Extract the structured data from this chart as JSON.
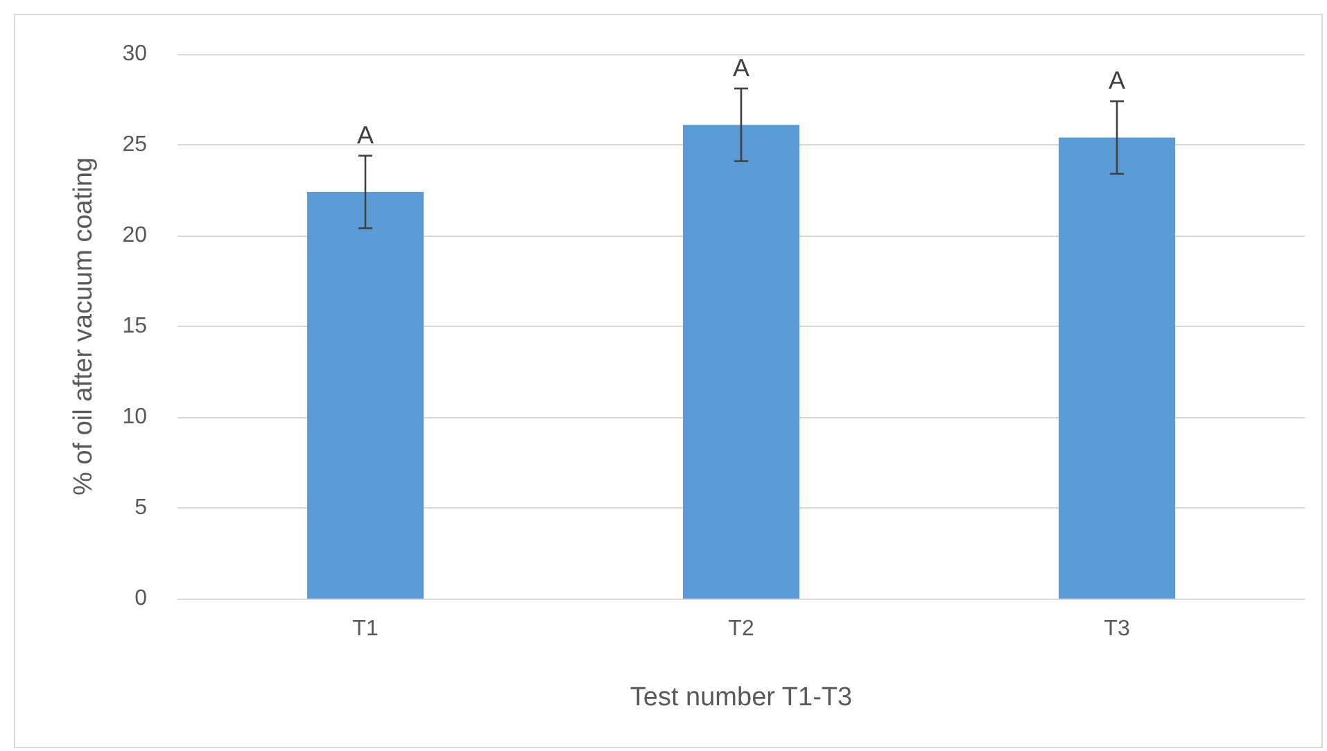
{
  "chart_data": {
    "type": "bar",
    "xlabel": "Test number T1-T3",
    "ylabel": "% of oil after vacuum coating",
    "categories": [
      "T1",
      "T2",
      "T3"
    ],
    "series": [
      {
        "color": "#5b9bd5",
        "values": [
          22.4,
          26.1,
          25.4
        ],
        "errors": [
          2,
          2,
          2
        ]
      }
    ],
    "ylim": [
      0,
      30
    ],
    "yticks": [
      0,
      5,
      10,
      15,
      20,
      25,
      30
    ],
    "grid": "y",
    "annotations": [
      {
        "text": "A",
        "x": "T1",
        "y": 24.4
      },
      {
        "text": "A",
        "x": "T2",
        "y": 28.1
      },
      {
        "text": "A",
        "x": "T3",
        "y": 27.4
      }
    ]
  }
}
